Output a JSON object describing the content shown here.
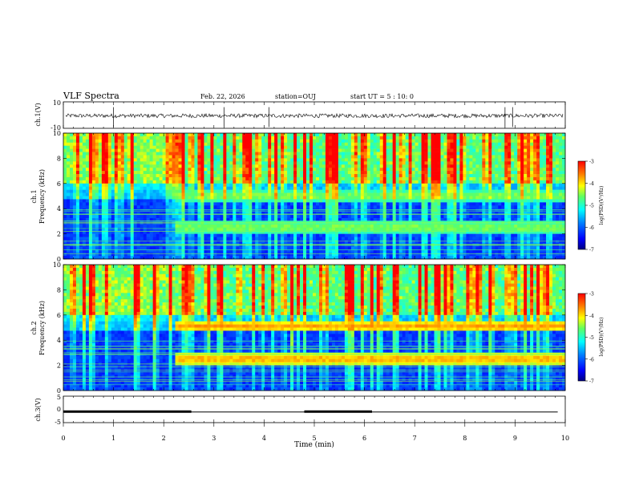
{
  "header": {
    "title": "VLF Spectra",
    "date": "Feb. 22, 2026",
    "station": "station=OUJ",
    "start_ut": "start UT =  5 : 10: 0"
  },
  "chart_data": [
    {
      "id": "waveform",
      "type": "line",
      "ylabel": "ch.1(V)",
      "ylim": [
        -10,
        10
      ],
      "yticks": [
        "10",
        "-10"
      ],
      "description_values": {
        "baseline": -0.5,
        "noise_amplitude": 1.5
      }
    },
    {
      "id": "spectrogram-ch1",
      "type": "heatmap",
      "ylabel": "ch.1\nFrequency (kHz)",
      "ylabel_line1": "ch.1",
      "ylabel_line2": "Frequency (kHz)",
      "ylim": [
        0,
        10
      ],
      "yticks": [
        "0",
        "2",
        "4",
        "6",
        "8",
        "10"
      ],
      "colorbar": {
        "label": "log(PSD)(V²/Hz)",
        "range": [
          -7,
          -3
        ],
        "ticks": [
          "-3",
          "-4",
          "-5",
          "-6",
          "-7"
        ]
      },
      "bands_khz": [
        {
          "center": 2.5,
          "start_min": 2.2
        },
        {
          "center": 5.0,
          "start_min": 2.2
        }
      ]
    },
    {
      "id": "spectrogram-ch2",
      "type": "heatmap",
      "ylabel": "ch.2\nFrequency (kHz)",
      "ylabel_line1": "ch.2",
      "ylabel_line2": "Frequency (kHz)",
      "ylim": [
        0,
        10
      ],
      "yticks": [
        "0",
        "2",
        "4",
        "6",
        "8",
        "10"
      ],
      "colorbar": {
        "label": "log(PSD)(V²/Hz)",
        "range": [
          -7,
          -3
        ],
        "ticks": [
          "-3",
          "-4",
          "-5",
          "-6",
          "-7"
        ]
      },
      "bands_khz": [
        {
          "center": 2.5,
          "start_min": 2.2
        },
        {
          "center": 5.1,
          "start_min": 2.2
        }
      ]
    },
    {
      "id": "ch3",
      "type": "line",
      "ylabel": "ch.3(V)",
      "ylim": [
        -5,
        5
      ],
      "yticks": [
        "5",
        "0",
        "-5"
      ],
      "baseline_v": -1,
      "thick_segments_min": [
        [
          0,
          2.55
        ],
        [
          4.8,
          6.15
        ]
      ]
    }
  ],
  "xaxis": {
    "label": "Time (min)",
    "xlim": [
      0,
      10
    ],
    "ticks": [
      "0",
      "1",
      "2",
      "3",
      "4",
      "5",
      "6",
      "7",
      "8",
      "9",
      "10"
    ]
  },
  "colors": {
    "axis": "#000000",
    "colormap": [
      "#00008f",
      "#0000ff",
      "#0080ff",
      "#00ffff",
      "#80ff80",
      "#ffff00",
      "#ff8000",
      "#ff0000",
      "#800000"
    ]
  }
}
